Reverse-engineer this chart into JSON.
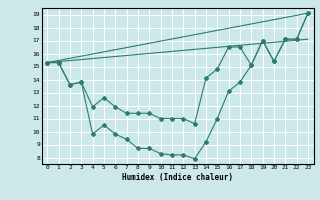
{
  "background_color": "#cce8e8",
  "grid_color": "#ffffff",
  "line_color": "#2d7d6f",
  "marker_color": "#2d7d6f",
  "xlabel": "Humidex (Indice chaleur)",
  "xlim": [
    -0.5,
    23.5
  ],
  "ylim": [
    7.5,
    19.5
  ],
  "yticks": [
    8,
    9,
    10,
    11,
    12,
    13,
    14,
    15,
    16,
    17,
    18,
    19
  ],
  "xticks": [
    0,
    1,
    2,
    3,
    4,
    5,
    6,
    7,
    8,
    9,
    10,
    11,
    12,
    13,
    14,
    15,
    16,
    17,
    18,
    19,
    20,
    21,
    22,
    23
  ],
  "line1_x": [
    0,
    1,
    2,
    3,
    4,
    5,
    6,
    7,
    8,
    9,
    10,
    11,
    12,
    13,
    14,
    15,
    16,
    17,
    18,
    19,
    20,
    21,
    22,
    23
  ],
  "line1_y": [
    15.3,
    15.3,
    13.6,
    13.8,
    9.8,
    10.5,
    9.8,
    9.4,
    8.7,
    8.7,
    8.3,
    8.2,
    8.2,
    7.9,
    9.2,
    11.0,
    13.1,
    13.8,
    15.1,
    17.0,
    15.4,
    17.1,
    17.1,
    19.1
  ],
  "line2_x": [
    0,
    1,
    2,
    3,
    4,
    5,
    6,
    7,
    8,
    9,
    10,
    11,
    12,
    13,
    14,
    15,
    16,
    17,
    18,
    19,
    20,
    21,
    22,
    23
  ],
  "line2_y": [
    15.3,
    15.3,
    13.6,
    13.8,
    11.9,
    12.6,
    11.9,
    11.4,
    11.4,
    11.4,
    11.0,
    11.0,
    11.0,
    10.6,
    14.1,
    14.8,
    16.5,
    16.5,
    15.1,
    17.0,
    15.4,
    17.1,
    17.1,
    19.1
  ],
  "line3_x": [
    0,
    23
  ],
  "line3_y": [
    15.3,
    19.1
  ],
  "line4_x": [
    0,
    23
  ],
  "line4_y": [
    15.3,
    17.1
  ]
}
